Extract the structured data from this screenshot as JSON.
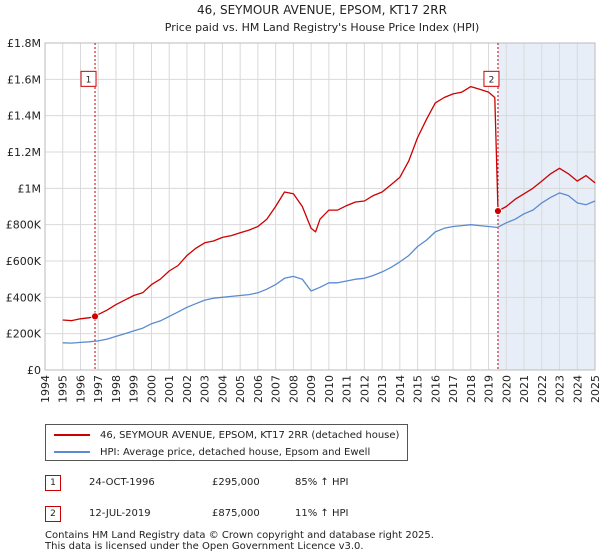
{
  "chart_data": {
    "type": "line",
    "title": "46, SEYMOUR AVENUE, EPSOM, KT17 2RR",
    "subtitle": "Price paid vs. HM Land Registry's House Price Index (HPI)",
    "xlim": [
      1994,
      2025
    ],
    "ylim": [
      0,
      1800000
    ],
    "x_ticks": [
      1994,
      1995,
      1996,
      1997,
      1998,
      1999,
      2000,
      2001,
      2002,
      2003,
      2004,
      2005,
      2006,
      2007,
      2008,
      2009,
      2010,
      2011,
      2012,
      2013,
      2014,
      2015,
      2016,
      2017,
      2018,
      2019,
      2020,
      2021,
      2022,
      2023,
      2024,
      2025
    ],
    "y_ticks": [
      0,
      200000,
      400000,
      600000,
      800000,
      1000000,
      1200000,
      1400000,
      1600000,
      1800000
    ],
    "y_tick_labels": [
      "£0",
      "£200K",
      "£400K",
      "£600K",
      "£800K",
      "£1M",
      "£1.2M",
      "£1.4M",
      "£1.6M",
      "£1.8M"
    ],
    "grid": true,
    "series": [
      {
        "name": "46, SEYMOUR AVENUE, EPSOM, KT17 2RR (detached house)",
        "color": "#cc0000",
        "x": [
          1995.0,
          1995.5,
          1996.0,
          1996.5,
          1996.82,
          1997.0,
          1997.5,
          1998.0,
          1998.5,
          1999.0,
          1999.5,
          2000.0,
          2000.5,
          2001.0,
          2001.5,
          2002.0,
          2002.5,
          2003.0,
          2003.5,
          2004.0,
          2004.5,
          2005.0,
          2005.5,
          2006.0,
          2006.5,
          2007.0,
          2007.5,
          2008.0,
          2008.5,
          2009.0,
          2009.25,
          2009.5,
          2010.0,
          2010.5,
          2011.0,
          2011.5,
          2012.0,
          2012.5,
          2013.0,
          2013.5,
          2014.0,
          2014.5,
          2015.0,
          2015.5,
          2016.0,
          2016.5,
          2017.0,
          2017.5,
          2018.0,
          2018.5,
          2019.0,
          2019.35,
          2019.53,
          2020.0,
          2020.5,
          2021.0,
          2021.5,
          2022.0,
          2022.5,
          2023.0,
          2023.5,
          2024.0,
          2024.5,
          2025.0
        ],
        "values": [
          275000,
          272000,
          282000,
          288000,
          295000,
          305000,
          330000,
          360000,
          385000,
          410000,
          425000,
          470000,
          500000,
          545000,
          575000,
          630000,
          670000,
          700000,
          710000,
          730000,
          740000,
          755000,
          770000,
          790000,
          830000,
          900000,
          980000,
          970000,
          900000,
          780000,
          760000,
          830000,
          880000,
          880000,
          905000,
          925000,
          930000,
          960000,
          980000,
          1020000,
          1060000,
          1150000,
          1280000,
          1380000,
          1470000,
          1500000,
          1520000,
          1530000,
          1560000,
          1545000,
          1530000,
          1500000,
          875000,
          900000,
          940000,
          970000,
          1000000,
          1040000,
          1080000,
          1110000,
          1080000,
          1040000,
          1070000,
          1030000
        ]
      },
      {
        "name": "HPI: Average price, detached house, Epsom and Ewell",
        "color": "#5b8bd0",
        "x": [
          1995.0,
          1995.5,
          1996.0,
          1996.5,
          1997.0,
          1997.5,
          1998.0,
          1998.5,
          1999.0,
          1999.5,
          2000.0,
          2000.5,
          2001.0,
          2001.5,
          2002.0,
          2002.5,
          2003.0,
          2003.5,
          2004.0,
          2004.5,
          2005.0,
          2005.5,
          2006.0,
          2006.5,
          2007.0,
          2007.5,
          2008.0,
          2008.5,
          2009.0,
          2009.5,
          2010.0,
          2010.5,
          2011.0,
          2011.5,
          2012.0,
          2012.5,
          2013.0,
          2013.5,
          2014.0,
          2014.5,
          2015.0,
          2015.5,
          2016.0,
          2016.5,
          2017.0,
          2017.5,
          2018.0,
          2018.5,
          2019.0,
          2019.5,
          2020.0,
          2020.5,
          2021.0,
          2021.5,
          2022.0,
          2022.5,
          2023.0,
          2023.5,
          2024.0,
          2024.5,
          2025.0
        ],
        "values": [
          150000,
          148000,
          152000,
          155000,
          160000,
          170000,
          185000,
          200000,
          215000,
          230000,
          255000,
          270000,
          295000,
          320000,
          345000,
          365000,
          385000,
          395000,
          400000,
          405000,
          410000,
          415000,
          425000,
          445000,
          470000,
          505000,
          515000,
          500000,
          435000,
          455000,
          480000,
          480000,
          490000,
          500000,
          505000,
          520000,
          540000,
          565000,
          595000,
          630000,
          680000,
          715000,
          760000,
          780000,
          790000,
          795000,
          800000,
          795000,
          790000,
          785000,
          810000,
          830000,
          860000,
          880000,
          920000,
          950000,
          975000,
          960000,
          920000,
          910000,
          930000
        ]
      }
    ],
    "sales": [
      {
        "label": "1",
        "x": 1996.82,
        "value": 295000
      },
      {
        "label": "2",
        "x": 2019.53,
        "value": 875000
      }
    ],
    "marker_boxes_y": 1600000
  },
  "legend": {
    "series1": "46, SEYMOUR AVENUE, EPSOM, KT17 2RR (detached house)",
    "series2": "HPI: Average price, detached house, Epsom and Ewell"
  },
  "transactions": [
    {
      "num": "1",
      "date": "24-OCT-1996",
      "price": "£295,000",
      "hpi": "85% ↑ HPI"
    },
    {
      "num": "2",
      "date": "12-JUL-2019",
      "price": "£875,000",
      "hpi": "11% ↑ HPI"
    }
  ],
  "footer": {
    "line1": "Contains HM Land Registry data © Crown copyright and database right 2025.",
    "line2": "This data is licensed under the Open Government Licence v3.0."
  },
  "colors": {
    "property": "#cc0000",
    "hpi": "#5b8bd0",
    "grid": "#d9d9d9",
    "dash": "#cc0000",
    "shade": "#e8eef8"
  }
}
